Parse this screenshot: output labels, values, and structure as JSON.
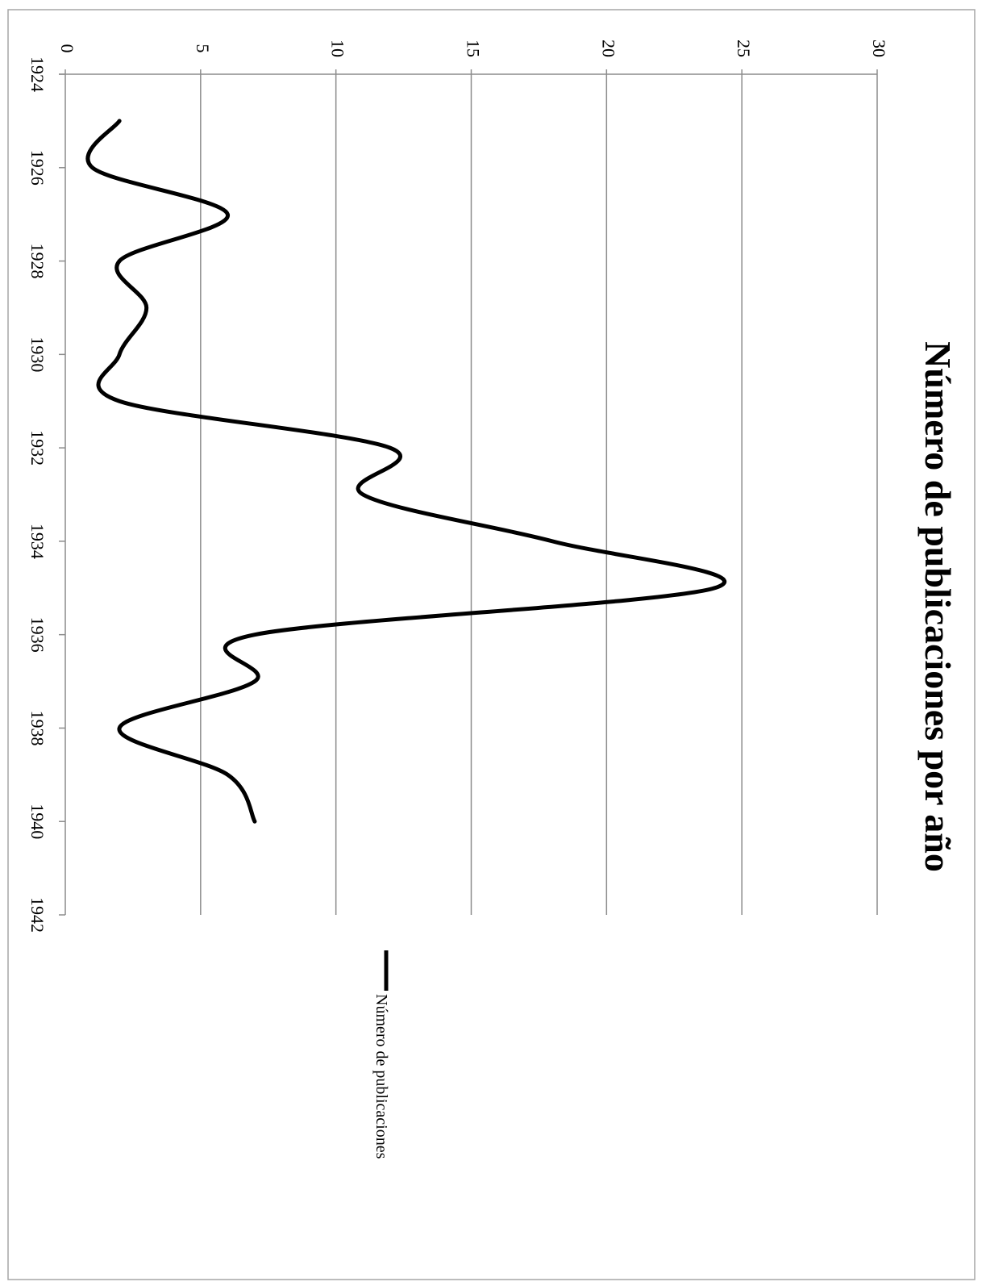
{
  "chart_data": {
    "type": "line",
    "title": "Número  de publicaciones por año",
    "xlabel": "",
    "ylabel": "",
    "orientation": "rotated-90-clockwise",
    "x_ticks": [
      "1924",
      "1926",
      "1928",
      "1930",
      "1932",
      "1934",
      "1936",
      "1938",
      "1940",
      "1942"
    ],
    "y_ticks": [
      "0",
      "5",
      "10",
      "15",
      "20",
      "25",
      "30"
    ],
    "xlim": [
      1924,
      1942
    ],
    "ylim": [
      0,
      30
    ],
    "grid": true,
    "legend_position": "right",
    "series": [
      {
        "name": "Número  de publicaciones",
        "color": "#000000",
        "x": [
          1925,
          1926,
          1927,
          1928,
          1929,
          1930,
          1931,
          1932,
          1933,
          1934,
          1935,
          1936,
          1937,
          1938,
          1939,
          1940
        ],
        "values": [
          2,
          1,
          6,
          2,
          3,
          2,
          2,
          12,
          11,
          18,
          24,
          7,
          7,
          2,
          6,
          7
        ]
      }
    ]
  }
}
